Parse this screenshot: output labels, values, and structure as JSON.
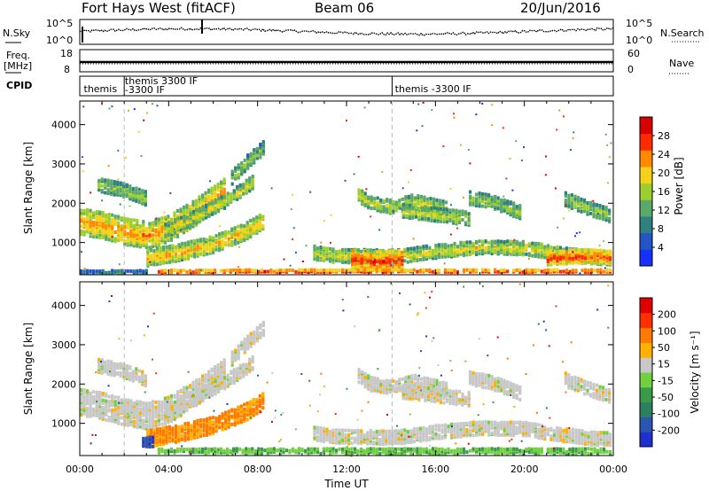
{
  "header": {
    "station": "Fort Hays West (fitACF)",
    "beam": "Beam 06",
    "date": "20/Jun/2016"
  },
  "top_panels": {
    "nsky_label": "N.Sky",
    "nsearch_label": "N.Search",
    "nsky_ticks": [
      "10^5",
      "10^0"
    ],
    "nsearch_ticks": [
      "10^5",
      "10^0"
    ],
    "freq_label_1": "Freq.",
    "freq_label_2": "[MHz]",
    "freq_ticks": [
      "18",
      "8"
    ],
    "nave_label": "Nave",
    "nave_ticks": [
      "60",
      "0"
    ],
    "cpid_label": "CPID",
    "cpid_entries": [
      {
        "text": "themis",
        "hour": 0.1
      },
      {
        "text": "themis 3300 IF",
        "hour": 1.95
      },
      {
        "text": "-3300 IF",
        "hour": 1.95
      },
      {
        "text": "themis -3300 IF",
        "hour": 14.1
      }
    ]
  },
  "chart_data": [
    {
      "type": "heatmap",
      "title": "",
      "xlabel": "",
      "ylabel": "Slant Range [km]",
      "xlim": [
        0,
        24
      ],
      "ylim": [
        180,
        4600
      ],
      "x_ticks": [
        "00:00",
        "04:00",
        "08:00",
        "12:00",
        "16:00",
        "20:00",
        "00:00"
      ],
      "y_ticks": [
        "1000",
        "2000",
        "3000",
        "4000"
      ],
      "colorbar": {
        "label": "Power [dB]",
        "ticks": [
          "4",
          "8",
          "12",
          "16",
          "20",
          "24",
          "28"
        ],
        "range": [
          0,
          32
        ],
        "colors": [
          "#1530ff",
          "#2255c8",
          "#2f8080",
          "#5aa86a",
          "#9ccf2e",
          "#f4d21a",
          "#ff8a00",
          "#ff2a00",
          "#d80000"
        ]
      },
      "bands": [
        {
          "t": [
            0.0,
            1.0,
            2.0,
            3.0,
            4.0,
            5.0,
            6.0,
            6.5
          ],
          "r": [
            1580,
            1480,
            1320,
            1230,
            1400,
            1750,
            2150,
            2350
          ],
          "w": 300,
          "level": 0.72
        },
        {
          "t": [
            3.0,
            4.5,
            6.0,
            7.5,
            8.2
          ],
          "r": [
            650,
            800,
            1000,
            1350,
            1600
          ],
          "w": 180,
          "level": 0.66
        },
        {
          "t": [
            3.8,
            5.0,
            6.5,
            7.8
          ],
          "r": [
            1350,
            1650,
            2100,
            2600
          ],
          "w": 150,
          "level": 0.55
        },
        {
          "t": [
            6.8,
            7.5,
            8.2
          ],
          "r": [
            2700,
            3100,
            3450
          ],
          "w": 160,
          "level": 0.45
        },
        {
          "t": [
            0.8,
            1.8,
            3.0
          ],
          "r": [
            2500,
            2400,
            2150
          ],
          "w": 160,
          "level": 0.5
        },
        {
          "t": [
            10.5,
            11.5,
            12.5,
            13.5,
            14.5,
            16,
            18,
            20,
            21.5,
            23,
            24
          ],
          "r": [
            780,
            700,
            700,
            680,
            700,
            820,
            920,
            900,
            760,
            660,
            640
          ],
          "w": 150,
          "level": 0.58
        },
        {
          "t": [
            12.2,
            13.2,
            14.5
          ],
          "r": [
            620,
            560,
            590
          ],
          "w": 220,
          "level": 0.86
        },
        {
          "t": [
            21.0,
            22.5,
            24
          ],
          "r": [
            640,
            700,
            660
          ],
          "w": 160,
          "level": 0.85
        },
        {
          "t": [
            12.5,
            13.0,
            14.0,
            15.0,
            16.5
          ],
          "r": [
            2250,
            2050,
            1950,
            2100,
            1900
          ],
          "w": 170,
          "level": 0.55
        },
        {
          "t": [
            14.5,
            16.0,
            17.5
          ],
          "r": [
            1850,
            1750,
            1650
          ],
          "w": 170,
          "level": 0.55
        },
        {
          "t": [
            17.5,
            18.5,
            19.8
          ],
          "r": [
            2180,
            2080,
            1800
          ],
          "w": 160,
          "level": 0.5
        },
        {
          "t": [
            21.8,
            23.0,
            24
          ],
          "r": [
            2150,
            1880,
            1700
          ],
          "w": 170,
          "level": 0.5
        },
        {
          "t": [
            3.5,
            8,
            12,
            16,
            20,
            24
          ],
          "r": [
            250,
            260,
            260,
            260,
            260,
            260
          ],
          "w": 90,
          "level": 0.95
        },
        {
          "t": [
            0.0,
            3.0
          ],
          "r": [
            240,
            240
          ],
          "w": 60,
          "level": 0.3
        }
      ]
    },
    {
      "type": "heatmap",
      "title": "",
      "xlabel": "Time UT",
      "ylabel": "Slant Range [km]",
      "xlim": [
        0,
        24
      ],
      "ylim": [
        180,
        4600
      ],
      "x_ticks": [
        "00:00",
        "04:00",
        "08:00",
        "12:00",
        "16:00",
        "20:00",
        "00:00"
      ],
      "y_ticks": [
        "1000",
        "2000",
        "3000",
        "4000"
      ],
      "colorbar": {
        "label": "Velocity [m s⁻¹]",
        "ticks": [
          "200",
          "100",
          "50",
          "15",
          "-15",
          "-50",
          "-100",
          "-200"
        ],
        "colors": [
          "#2030d0",
          "#2a55b0",
          "#2c8060",
          "#3a9a4a",
          "#70d040",
          "#c8c8c8",
          "#ffb000",
          "#ff7a00",
          "#ff3000",
          "#e00000"
        ]
      },
      "bands": [
        {
          "t": [
            0.0,
            1.0,
            2.0,
            3.0,
            4.0,
            5.0,
            6.0,
            6.5
          ],
          "r": [
            1580,
            1480,
            1320,
            1230,
            1400,
            1750,
            2150,
            2350
          ],
          "w": 300,
          "level": 0.55
        },
        {
          "t": [
            3.0,
            4.5,
            6.0,
            7.5,
            8.2
          ],
          "r": [
            650,
            800,
            1000,
            1350,
            1600
          ],
          "w": 200,
          "level": 0.72
        },
        {
          "t": [
            2.8,
            3.3
          ],
          "r": [
            580,
            560
          ],
          "w": 120,
          "level": 0.12
        },
        {
          "t": [
            3.8,
            5.0,
            6.5,
            7.8
          ],
          "r": [
            1350,
            1650,
            2100,
            2600
          ],
          "w": 150,
          "level": 0.55
        },
        {
          "t": [
            6.8,
            7.5,
            8.2
          ],
          "r": [
            2700,
            3100,
            3450
          ],
          "w": 160,
          "level": 0.55
        },
        {
          "t": [
            0.8,
            1.8,
            3.0
          ],
          "r": [
            2500,
            2400,
            2150
          ],
          "w": 160,
          "level": 0.55
        },
        {
          "t": [
            10.5,
            11.5,
            12.5,
            13.5,
            14.5,
            16,
            18,
            20,
            21.5,
            23,
            24
          ],
          "r": [
            780,
            700,
            700,
            680,
            700,
            820,
            920,
            900,
            760,
            660,
            640
          ],
          "w": 170,
          "level": 0.55
        },
        {
          "t": [
            12.5,
            13.0,
            14.0,
            15.0,
            16.5
          ],
          "r": [
            2250,
            2050,
            1950,
            2100,
            1900
          ],
          "w": 170,
          "level": 0.55
        },
        {
          "t": [
            14.5,
            16.0,
            17.5
          ],
          "r": [
            1850,
            1750,
            1650
          ],
          "w": 170,
          "level": 0.55
        },
        {
          "t": [
            17.5,
            18.5,
            19.8
          ],
          "r": [
            2180,
            2080,
            1800
          ],
          "w": 160,
          "level": 0.55
        },
        {
          "t": [
            21.8,
            23.0,
            24
          ],
          "r": [
            2150,
            1880,
            1700
          ],
          "w": 170,
          "level": 0.55
        },
        {
          "t": [
            3.5,
            8,
            12,
            16,
            20,
            24
          ],
          "r": [
            260,
            270,
            270,
            270,
            270,
            270
          ],
          "w": 110,
          "level": 0.42
        }
      ]
    }
  ]
}
